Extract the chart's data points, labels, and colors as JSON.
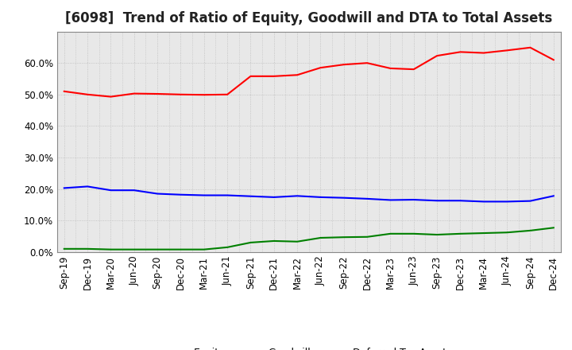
{
  "title": "[6098]  Trend of Ratio of Equity, Goodwill and DTA to Total Assets",
  "x_labels": [
    "Sep-19",
    "Dec-19",
    "Mar-20",
    "Jun-20",
    "Sep-20",
    "Dec-20",
    "Mar-21",
    "Jun-21",
    "Sep-21",
    "Dec-21",
    "Mar-22",
    "Jun-22",
    "Sep-22",
    "Dec-22",
    "Mar-23",
    "Jun-23",
    "Sep-23",
    "Dec-23",
    "Mar-24",
    "Jun-24",
    "Sep-24",
    "Dec-24"
  ],
  "equity": [
    0.51,
    0.5,
    0.493,
    0.503,
    0.502,
    0.5,
    0.499,
    0.5,
    0.558,
    0.558,
    0.562,
    0.585,
    0.595,
    0.6,
    0.583,
    0.58,
    0.623,
    0.635,
    0.632,
    0.64,
    0.649,
    0.61
  ],
  "goodwill": [
    0.203,
    0.208,
    0.196,
    0.196,
    0.185,
    0.182,
    0.18,
    0.18,
    0.177,
    0.174,
    0.178,
    0.174,
    0.172,
    0.169,
    0.165,
    0.166,
    0.163,
    0.163,
    0.16,
    0.16,
    0.162,
    0.178
  ],
  "dta": [
    0.01,
    0.01,
    0.008,
    0.008,
    0.008,
    0.008,
    0.008,
    0.015,
    0.03,
    0.035,
    0.033,
    0.045,
    0.047,
    0.048,
    0.058,
    0.058,
    0.055,
    0.058,
    0.06,
    0.062,
    0.068,
    0.077
  ],
  "equity_color": "#FF0000",
  "goodwill_color": "#0000FF",
  "dta_color": "#008000",
  "plot_bg_color": "#E8E8E8",
  "fig_bg_color": "#FFFFFF",
  "ylim": [
    0.0,
    0.7
  ],
  "yticks": [
    0.0,
    0.1,
    0.2,
    0.3,
    0.4,
    0.5,
    0.6
  ],
  "grid_color": "#BBBBBB",
  "title_fontsize": 12,
  "tick_fontsize": 8.5,
  "legend_fontsize": 9
}
